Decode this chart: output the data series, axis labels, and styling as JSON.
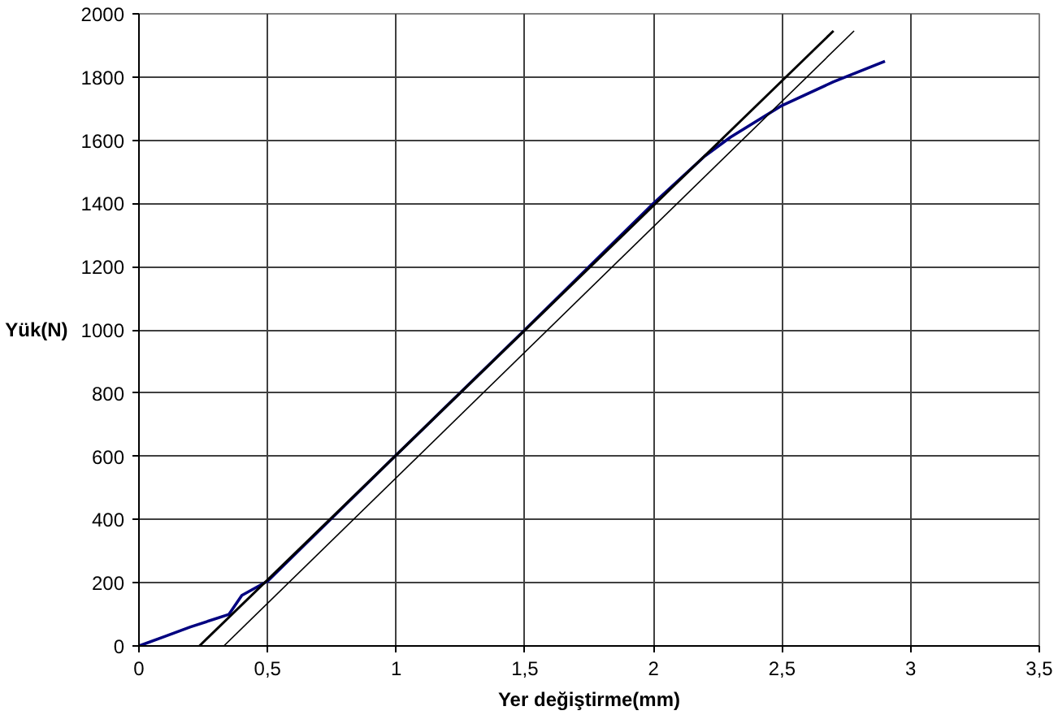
{
  "chart_data": {
    "type": "line",
    "xlabel": "Yer değiştirme(mm)",
    "ylabel": "Yük(N)",
    "xlim": [
      0,
      3.5
    ],
    "ylim": [
      0,
      2000
    ],
    "xticks": [
      0,
      {
        "value": 0.5,
        "label": "0,5"
      },
      1,
      {
        "value": 1.5,
        "label": "1,5"
      },
      2,
      {
        "value": 2.5,
        "label": "2,5"
      },
      3,
      {
        "value": 3.5,
        "label": "3,5"
      }
    ],
    "yticks": [
      0,
      200,
      400,
      600,
      800,
      1000,
      1200,
      1400,
      1600,
      1800,
      2000
    ],
    "grid": true,
    "marker": "none",
    "line_style": "solid",
    "series": [
      {
        "color": "#000080",
        "x": [
          0,
          0.1,
          0.2,
          0.35,
          0.4,
          0.5,
          1,
          1.5,
          2,
          2.2,
          2.3,
          2.4,
          2.5,
          2.7,
          2.9
        ],
        "values": [
          0,
          30,
          60,
          100,
          160,
          205,
          604,
          1000,
          1400,
          1550,
          1610,
          1660,
          1710,
          1785,
          1850
        ]
      },
      {
        "color": "#000000",
        "x": [
          0.235,
          2.7
        ],
        "values": [
          0,
          1946
        ]
      },
      {
        "color": "#000000",
        "x": [
          0.33,
          2.78
        ],
        "values": [
          0,
          1946
        ]
      }
    ]
  }
}
